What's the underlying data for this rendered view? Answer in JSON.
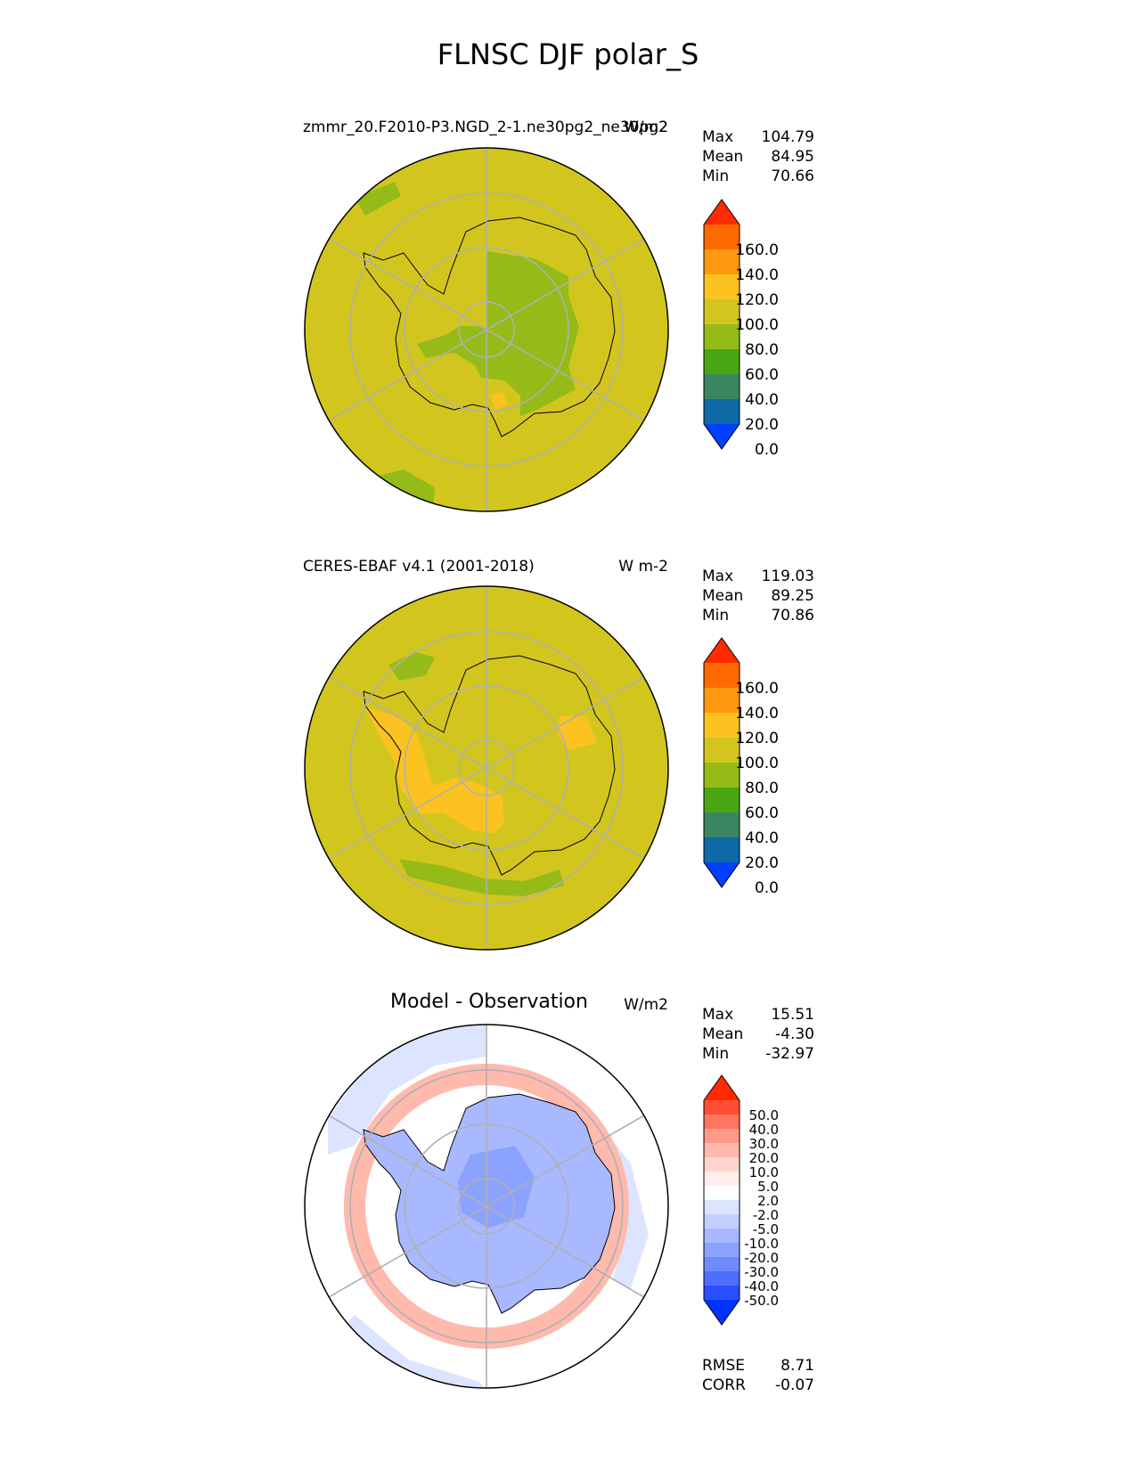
{
  "figure": {
    "title": "FLNSC DJF polar_S"
  },
  "panels": [
    {
      "id": "test",
      "left_title": "zmmr_20.F2010-P3.NGD_2-1.ne30pg2_ne30pg2",
      "center_title": "",
      "units": "W/m2",
      "stats": [
        {
          "label": "Max",
          "value": "104.79"
        },
        {
          "label": "Mean",
          "value": "84.95"
        },
        {
          "label": "Min",
          "value": "70.66"
        }
      ],
      "extra_stats": []
    },
    {
      "id": "ref",
      "left_title": "CERES-EBAF v4.1 (2001-2018)",
      "center_title": "",
      "units": "W m-2",
      "stats": [
        {
          "label": "Max",
          "value": "119.03"
        },
        {
          "label": "Mean",
          "value": "89.25"
        },
        {
          "label": "Min",
          "value": "70.86"
        }
      ],
      "extra_stats": []
    },
    {
      "id": "diff",
      "left_title": "",
      "center_title": "Model - Observation",
      "units": "W/m2",
      "stats": [
        {
          "label": "Max",
          "value": "15.51"
        },
        {
          "label": "Mean",
          "value": "-4.30"
        },
        {
          "label": "Min",
          "value": "-32.97"
        }
      ],
      "extra_stats": [
        {
          "label": "RMSE",
          "value": "8.71"
        },
        {
          "label": "CORR",
          "value": "-0.07"
        }
      ]
    }
  ],
  "colorbars": {
    "main": {
      "ticks": [
        "160.0",
        "140.0",
        "120.0",
        "100.0",
        "80.0",
        "60.0",
        "40.0",
        "20.0",
        "0.0"
      ],
      "colors_top_to_bottom": [
        "#ff2a00",
        "#ff6a00",
        "#ff9a10",
        "#fbc220",
        "#d2c61e",
        "#95bb19",
        "#49a511",
        "#3a8660",
        "#0e6aa6",
        "#0040ff"
      ]
    },
    "diff": {
      "ticks": [
        "50.0",
        "40.0",
        "30.0",
        "20.0",
        "10.0",
        "5.0",
        "2.0",
        "-2.0",
        "-5.0",
        "-10.0",
        "-20.0",
        "-30.0",
        "-40.0",
        "-50.0"
      ],
      "colors_top_to_bottom": [
        "#ff2a00",
        "#ff4d33",
        "#ff7560",
        "#ff9a88",
        "#ffb9ad",
        "#ffd6cf",
        "#ffeeea",
        "#ffffff",
        "#dde4ff",
        "#c3cfff",
        "#a8b9ff",
        "#8ca2ff",
        "#6f8aff",
        "#4f6dff",
        "#2b4eff",
        "#0033ff"
      ]
    }
  },
  "colors": {
    "map_base": "#d2c61e",
    "map_green": "#95bb19",
    "map_orange": "#fbc220",
    "diff_blue": "#a8b9ff",
    "diff_red": "#ffb9ad",
    "diff_light_blue": "#dde4ff"
  },
  "chart_data": [
    {
      "type": "heatmap",
      "projection": "south polar stereographic",
      "title": "zmmr_20.F2010-P3.NGD_2-1.ne30pg2_ne30pg2",
      "units": "W/m2",
      "max": 104.79,
      "mean": 84.95,
      "min": 70.66,
      "levels": [
        0,
        20,
        40,
        60,
        80,
        100,
        120,
        140,
        160
      ]
    },
    {
      "type": "heatmap",
      "projection": "south polar stereographic",
      "title": "CERES-EBAF v4.1 (2001-2018)",
      "units": "W m-2",
      "max": 119.03,
      "mean": 89.25,
      "min": 70.86,
      "levels": [
        0,
        20,
        40,
        60,
        80,
        100,
        120,
        140,
        160
      ]
    },
    {
      "type": "heatmap",
      "projection": "south polar stereographic",
      "title": "Model - Observation",
      "units": "W/m2",
      "max": 15.51,
      "mean": -4.3,
      "min": -32.97,
      "rmse": 8.71,
      "corr": -0.07,
      "levels": [
        -50,
        -40,
        -30,
        -20,
        -10,
        -5,
        -2,
        2,
        5,
        10,
        20,
        30,
        40,
        50
      ]
    }
  ]
}
